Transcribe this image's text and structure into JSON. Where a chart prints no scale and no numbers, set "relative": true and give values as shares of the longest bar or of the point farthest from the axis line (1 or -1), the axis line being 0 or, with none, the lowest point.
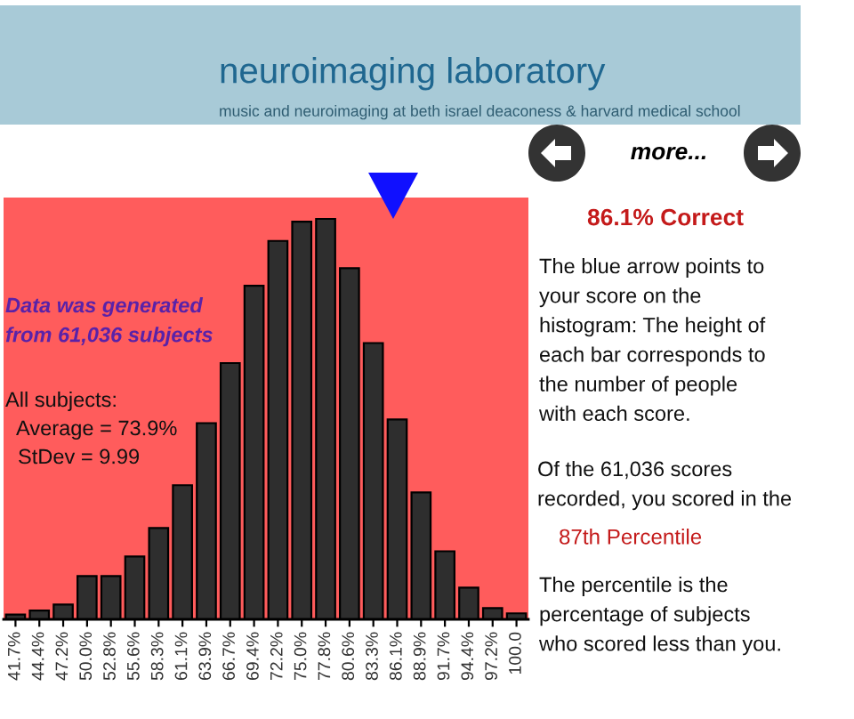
{
  "chart_data": {
    "type": "bar",
    "title": "neuroimaging laboratory",
    "subtitle": "music and neuroimaging at beth israel deaconess & harvard medical school",
    "categories": [
      "41.7%",
      "44.4%",
      "47.2%",
      "50.0%",
      "52.8%",
      "55.6%",
      "58.3%",
      "61.1%",
      "63.9%",
      "66.7%",
      "69.4%",
      "72.2%",
      "75.0%",
      "77.8%",
      "80.6%",
      "83.3%",
      "86.1%",
      "88.9%",
      "91.7%",
      "94.4%",
      "97.2%",
      "100.0"
    ],
    "values": [
      0.012,
      0.022,
      0.037,
      0.108,
      0.108,
      0.157,
      0.228,
      0.335,
      0.49,
      0.64,
      0.833,
      0.945,
      0.993,
      1,
      0.877,
      0.69,
      0.499,
      0.317,
      0.17,
      0.079,
      0.028,
      0.015
    ],
    "color": "#2e2e2e",
    "relative": true,
    "annotations": [
      "more...",
      "Data was generated\nfrom 61,036 subjects",
      "All subjects:",
      "Average = 73.9%",
      "StDev = 9.99",
      "86.1% Correct",
      "The blue arrow points to\nyour score on the\nhistogram: The height of\neach bar corresponds to\nthe number of people\nwith each score.",
      "Of the 61,036 scores\nrecorded, you scored in the",
      "87th Percentile",
      "The percentile is the\npercentage of subjects\nwho scored less than you."
    ]
  }
}
